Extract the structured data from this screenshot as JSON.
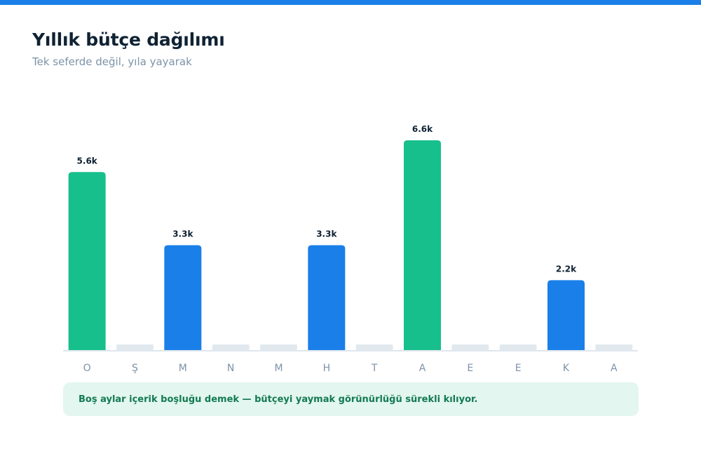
{
  "header": {
    "title": "Yıllık bütçe dağılımı",
    "subtitle": "Tek seferde değil, yıla yayarak"
  },
  "note": {
    "text": "Boş aylar içerik boşluğu demek — bütçeyi yaymak görünürlüğü sürekli kılıyor."
  },
  "colors": {
    "accent": "#1a7fe8",
    "highlight": "#17bf8c",
    "empty": "#e1e9ef",
    "baseline": "#dfe7ee",
    "tick": "#7d93a8",
    "value_label": "#0f2233"
  },
  "chart_data": {
    "type": "bar",
    "title": "Yıllık bütçe dağılımı",
    "subtitle": "Tek seferde değil, yıla yayarak",
    "categories": [
      "O",
      "Ş",
      "M",
      "N",
      "M",
      "H",
      "T",
      "A",
      "E",
      "E",
      "K",
      "A"
    ],
    "values": [
      5.6,
      0,
      3.3,
      0,
      0,
      3.3,
      0,
      6.6,
      0,
      0,
      2.2,
      0
    ],
    "value_labels": [
      "5.6k",
      "",
      "3.3k",
      "",
      "",
      "3.3k",
      "",
      "6.6k",
      "",
      "",
      "2.2k",
      ""
    ],
    "highlight": [
      true,
      false,
      false,
      false,
      false,
      false,
      false,
      true,
      false,
      false,
      false,
      false
    ],
    "unit": "k",
    "ylim": [
      0,
      6.6
    ],
    "grid": false,
    "legend": "none"
  }
}
